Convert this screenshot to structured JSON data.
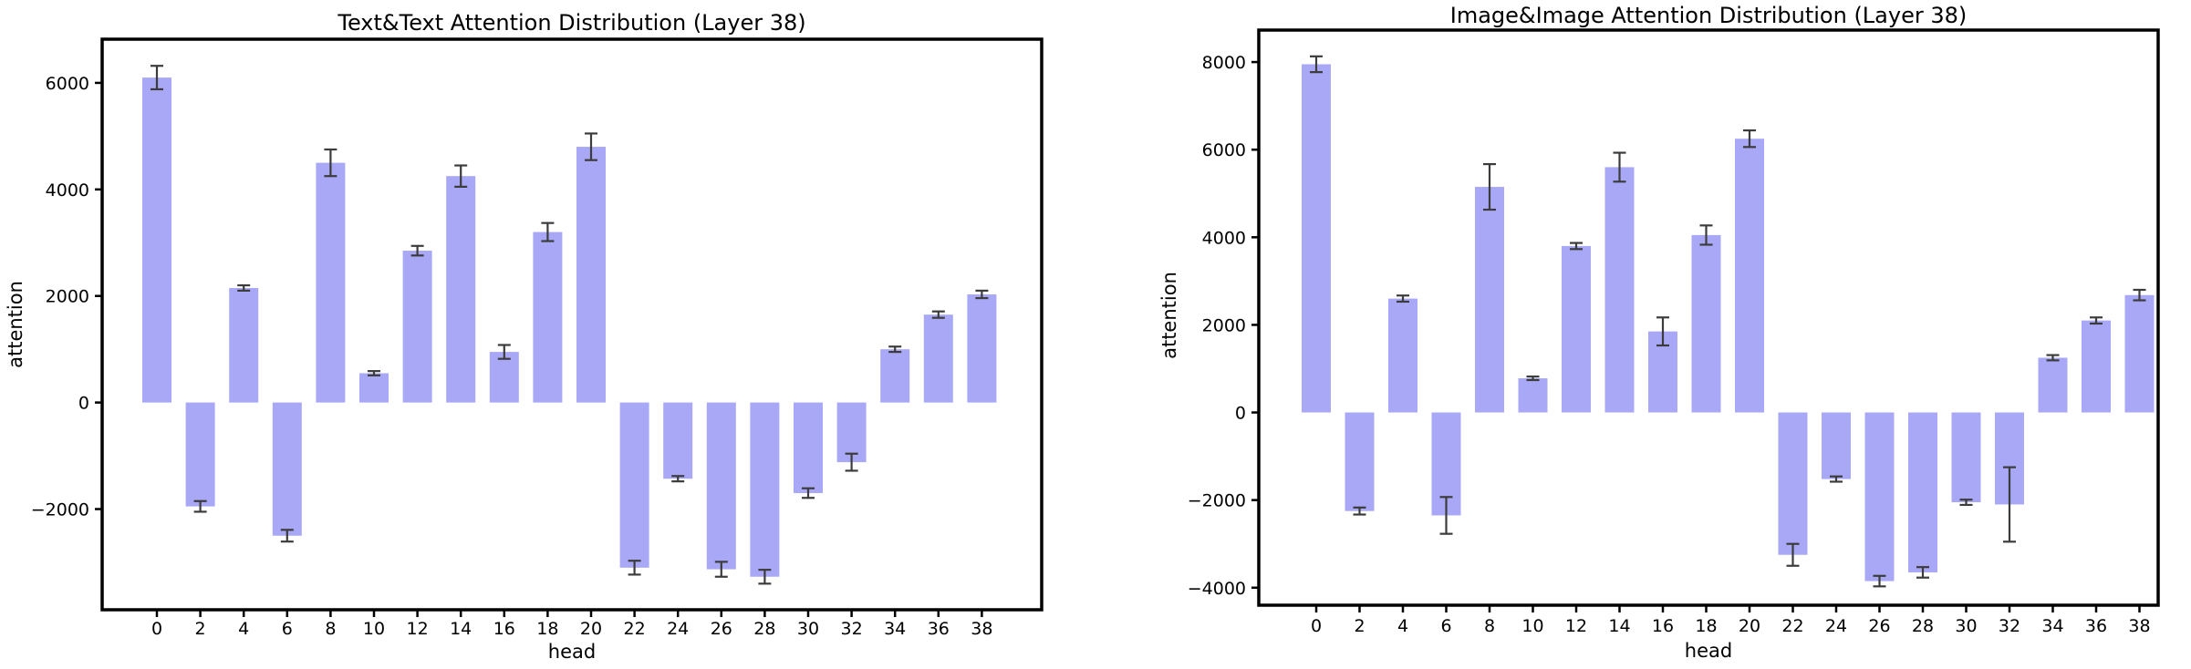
{
  "page": {
    "background": "#ffffff"
  },
  "chart_data": [
    {
      "type": "bar",
      "title": "Text&Text Attention Distribution (Layer 38)",
      "xlabel": "head",
      "ylabel": "attention",
      "categories": [
        0,
        2,
        4,
        6,
        8,
        10,
        12,
        14,
        16,
        18,
        20,
        22,
        24,
        26,
        28,
        30,
        32,
        34,
        36,
        38
      ],
      "values": [
        6100,
        -1950,
        2150,
        -2500,
        4500,
        550,
        2850,
        4250,
        950,
        3200,
        4800,
        -3100,
        -1430,
        -3130,
        -3270,
        -1700,
        -1120,
        1000,
        1650,
        2030
      ],
      "errors": [
        220,
        100,
        50,
        110,
        250,
        40,
        90,
        200,
        130,
        170,
        250,
        130,
        50,
        140,
        130,
        90,
        160,
        50,
        60,
        70
      ],
      "yticks": [
        6000,
        4000,
        2000,
        0,
        -2000
      ],
      "ylim": [
        -3890,
        6820
      ],
      "grid": false,
      "legend": null,
      "bar_color": "#a8a8f6",
      "error_color": "#3c3c3c",
      "axis_color": "#000000"
    },
    {
      "type": "bar",
      "title": "Image&Image Attention Distribution (Layer 38)",
      "xlabel": "head",
      "ylabel": "attention",
      "categories": [
        0,
        2,
        4,
        6,
        8,
        10,
        12,
        14,
        16,
        18,
        20,
        22,
        24,
        26,
        28,
        30,
        32,
        34,
        36,
        38
      ],
      "values": [
        7950,
        -2250,
        2600,
        -2350,
        5150,
        780,
        3800,
        5600,
        1850,
        4050,
        6250,
        -3250,
        -1520,
        -3850,
        -3650,
        -2050,
        -2100,
        1250,
        2100,
        2680
      ],
      "errors": [
        180,
        80,
        70,
        420,
        520,
        40,
        70,
        330,
        320,
        220,
        190,
        250,
        60,
        120,
        120,
        60,
        850,
        60,
        70,
        120
      ],
      "yticks": [
        8000,
        6000,
        4000,
        2000,
        0,
        -2000,
        -4000
      ],
      "ylim": [
        -4400,
        8730
      ],
      "grid": false,
      "legend": null,
      "bar_color": "#a8a8f6",
      "error_color": "#3c3c3c",
      "axis_color": "#000000"
    }
  ]
}
